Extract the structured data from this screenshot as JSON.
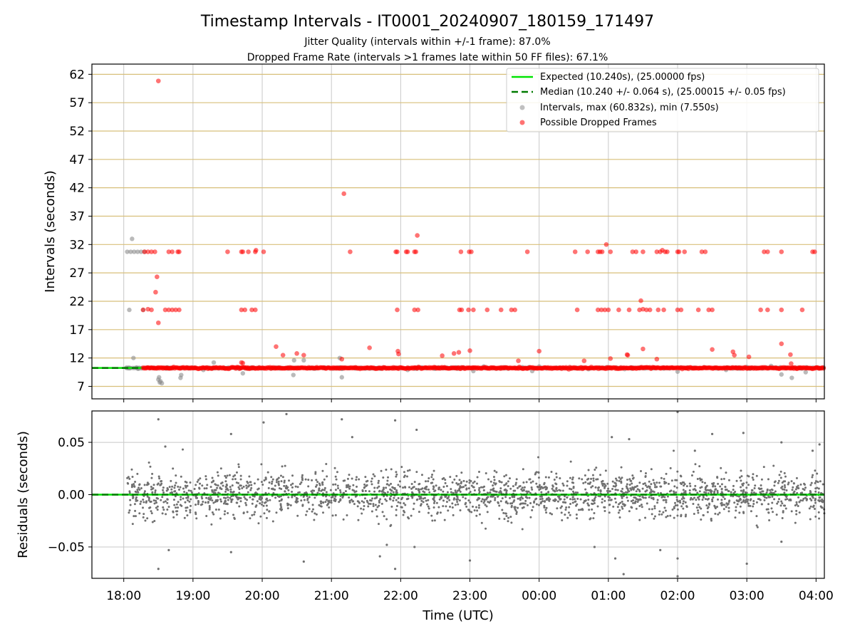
{
  "title": "Timestamp Intervals - IT0001_20240907_180159_171497",
  "subtitle_1": "Jitter Quality (intervals within +/-1 frame): 87.0%",
  "subtitle_2": "Dropped Frame Rate (intervals >1 frames late within 50 FF files): 67.1%",
  "colors": {
    "expected": "#00e400",
    "median": "#007a00",
    "interval": "#8c8c8c",
    "dropped": "#ff0000",
    "gridline": "#d8bf7a",
    "residual": "#707070"
  },
  "chart_data": [
    {
      "type": "scatter",
      "ylabel": "Intervals (seconds)",
      "y_ticks": [
        7,
        12,
        17,
        22,
        27,
        32,
        37,
        42,
        47,
        52,
        57,
        62
      ],
      "ylim": [
        4.8,
        63.8
      ],
      "xlim_hours": [
        17.54,
        28.12
      ],
      "grid": true,
      "legend_placement": "top-right",
      "legend": {
        "expected": "Expected (10.240s), (25.00000 fps)",
        "median": "Median (10.240 +/- 0.064 s), (25.00015 +/- 0.05 fps)",
        "intervals": "Intervals, max (60.832s), min (7.550s)",
        "dropped": "Possible Dropped Frames"
      },
      "expected_value": 10.24,
      "median_value": 10.24,
      "baseline_span_hours": [
        18.0,
        28.12
      ],
      "interval_points": [
        [
          18.05,
          30.72
        ],
        [
          18.1,
          30.72
        ],
        [
          18.15,
          30.72
        ],
        [
          18.2,
          30.72
        ],
        [
          18.25,
          30.72
        ],
        [
          18.3,
          30.72
        ],
        [
          18.12,
          33.0
        ],
        [
          18.08,
          20.48
        ],
        [
          18.28,
          20.48
        ],
        [
          18.14,
          12.0
        ],
        [
          18.5,
          8.2
        ],
        [
          18.52,
          7.7
        ],
        [
          18.55,
          7.55
        ],
        [
          18.51,
          8.6
        ],
        [
          18.53,
          7.9
        ],
        [
          18.82,
          8.5
        ],
        [
          18.83,
          9.0
        ],
        [
          19.15,
          9.9
        ],
        [
          19.3,
          11.2
        ],
        [
          19.72,
          9.3
        ],
        [
          20.45,
          9.0
        ],
        [
          20.46,
          11.6
        ],
        [
          20.6,
          11.6
        ],
        [
          21.15,
          8.6
        ],
        [
          21.12,
          12.0
        ],
        [
          22.1,
          9.9
        ],
        [
          23.05,
          9.7
        ],
        [
          23.2,
          10.5
        ],
        [
          23.9,
          9.7
        ],
        [
          24.0,
          10.5
        ],
        [
          26.0,
          9.6
        ],
        [
          26.7,
          9.9
        ],
        [
          27.0,
          10.4
        ],
        [
          27.35,
          10.6
        ],
        [
          27.5,
          9.1
        ],
        [
          27.65,
          8.5
        ],
        [
          27.85,
          9.5
        ]
      ],
      "dropped_points": [
        [
          18.5,
          60.832
        ],
        [
          18.3,
          30.72
        ],
        [
          18.35,
          30.72
        ],
        [
          18.4,
          30.72
        ],
        [
          18.45,
          30.72
        ],
        [
          18.65,
          30.72
        ],
        [
          18.7,
          30.72
        ],
        [
          18.8,
          30.72
        ],
        [
          18.78,
          30.72
        ],
        [
          19.5,
          30.72
        ],
        [
          19.7,
          30.72
        ],
        [
          19.72,
          30.72
        ],
        [
          19.8,
          30.72
        ],
        [
          19.9,
          30.72
        ],
        [
          19.91,
          31.0
        ],
        [
          20.02,
          30.72
        ],
        [
          21.27,
          30.72
        ],
        [
          21.93,
          30.72
        ],
        [
          21.95,
          30.72
        ],
        [
          22.08,
          30.72
        ],
        [
          22.1,
          30.72
        ],
        [
          22.2,
          30.72
        ],
        [
          22.22,
          30.72
        ],
        [
          22.87,
          30.72
        ],
        [
          22.99,
          30.72
        ],
        [
          23.02,
          30.72
        ],
        [
          23.83,
          30.72
        ],
        [
          24.52,
          30.72
        ],
        [
          24.7,
          30.72
        ],
        [
          24.85,
          30.72
        ],
        [
          24.88,
          30.72
        ],
        [
          24.91,
          30.72
        ],
        [
          25.03,
          30.72
        ],
        [
          25.35,
          30.72
        ],
        [
          25.4,
          30.72
        ],
        [
          25.5,
          30.72
        ],
        [
          25.7,
          30.72
        ],
        [
          25.75,
          30.72
        ],
        [
          25.78,
          31.0
        ],
        [
          25.82,
          30.72
        ],
        [
          25.85,
          30.72
        ],
        [
          26.0,
          30.72
        ],
        [
          26.02,
          30.72
        ],
        [
          26.1,
          30.72
        ],
        [
          26.35,
          30.72
        ],
        [
          26.4,
          30.72
        ],
        [
          27.25,
          30.72
        ],
        [
          27.3,
          30.72
        ],
        [
          27.5,
          30.72
        ],
        [
          27.95,
          30.72
        ],
        [
          27.98,
          30.72
        ],
        [
          24.97,
          32.0
        ],
        [
          22.24,
          33.6
        ],
        [
          18.48,
          26.3
        ],
        [
          18.46,
          23.6
        ],
        [
          18.5,
          18.2
        ],
        [
          18.28,
          20.48
        ],
        [
          18.35,
          20.6
        ],
        [
          18.4,
          20.48
        ],
        [
          18.6,
          20.48
        ],
        [
          18.65,
          20.48
        ],
        [
          18.7,
          20.48
        ],
        [
          18.75,
          20.48
        ],
        [
          18.8,
          20.48
        ],
        [
          19.7,
          20.48
        ],
        [
          19.75,
          20.48
        ],
        [
          19.85,
          20.48
        ],
        [
          19.9,
          20.48
        ],
        [
          21.95,
          20.48
        ],
        [
          22.2,
          20.48
        ],
        [
          22.25,
          20.48
        ],
        [
          22.85,
          20.48
        ],
        [
          22.88,
          20.48
        ],
        [
          22.98,
          20.48
        ],
        [
          23.05,
          20.48
        ],
        [
          23.25,
          20.48
        ],
        [
          23.45,
          20.48
        ],
        [
          23.6,
          20.48
        ],
        [
          23.65,
          20.48
        ],
        [
          24.55,
          20.48
        ],
        [
          24.85,
          20.48
        ],
        [
          24.9,
          20.48
        ],
        [
          24.95,
          20.48
        ],
        [
          25.0,
          20.48
        ],
        [
          25.15,
          20.48
        ],
        [
          25.3,
          20.48
        ],
        [
          25.45,
          20.48
        ],
        [
          25.5,
          20.6
        ],
        [
          25.55,
          20.48
        ],
        [
          25.6,
          20.48
        ],
        [
          25.72,
          20.48
        ],
        [
          25.8,
          20.48
        ],
        [
          26.0,
          20.48
        ],
        [
          26.05,
          20.48
        ],
        [
          26.3,
          20.48
        ],
        [
          26.45,
          20.48
        ],
        [
          26.5,
          20.48
        ],
        [
          27.2,
          20.48
        ],
        [
          27.3,
          20.48
        ],
        [
          27.5,
          20.48
        ],
        [
          27.8,
          20.48
        ],
        [
          25.47,
          22.1
        ],
        [
          21.18,
          40.96
        ],
        [
          20.2,
          14.0
        ],
        [
          20.5,
          12.8
        ],
        [
          20.3,
          12.5
        ],
        [
          20.6,
          12.5
        ],
        [
          21.55,
          13.8
        ],
        [
          21.96,
          13.2
        ],
        [
          21.97,
          12.7
        ],
        [
          22.6,
          12.4
        ],
        [
          22.77,
          12.8
        ],
        [
          22.84,
          13.0
        ],
        [
          23.0,
          13.3
        ],
        [
          24.0,
          13.2
        ],
        [
          25.27,
          12.6
        ],
        [
          25.28,
          12.5
        ],
        [
          25.5,
          13.6
        ],
        [
          26.5,
          13.5
        ],
        [
          26.8,
          13.1
        ],
        [
          26.82,
          12.5
        ],
        [
          27.03,
          12.2
        ],
        [
          27.5,
          14.5
        ],
        [
          27.63,
          12.6
        ],
        [
          27.64,
          11.0
        ],
        [
          25.03,
          11.9
        ],
        [
          25.7,
          11.8
        ],
        [
          24.65,
          11.5
        ],
        [
          23.7,
          11.5
        ],
        [
          19.7,
          11.2
        ],
        [
          19.72,
          11.1
        ],
        [
          21.15,
          11.8
        ]
      ],
      "dense_band": {
        "value": 10.24,
        "start_hours": 18.28,
        "end_hours": 28.12
      }
    },
    {
      "type": "scatter",
      "ylabel": "Residuals (seconds)",
      "xlabel": "Time (UTC)",
      "y_ticks": [
        -0.05,
        0.0,
        0.05
      ],
      "y_tick_labels": [
        "−0.05",
        "0.00",
        "0.05"
      ],
      "ylim": [
        -0.08,
        0.08
      ],
      "x_ticks_hours": [
        18,
        19,
        20,
        21,
        22,
        23,
        24,
        25,
        26,
        27,
        28
      ],
      "x_tick_labels": [
        "18:00",
        "19:00",
        "20:00",
        "21:00",
        "22:00",
        "23:00",
        "00:00",
        "01:00",
        "02:00",
        "03:00",
        "04:00"
      ],
      "grid": true,
      "zero_line": 0.0,
      "residual_spread_seconds": 0.02,
      "residual_span_hours": [
        18.05,
        28.12
      ],
      "outliers": [
        [
          18.5,
          0.072
        ],
        [
          18.5,
          -0.071
        ],
        [
          18.65,
          -0.053
        ],
        [
          18.6,
          0.046
        ],
        [
          19.55,
          0.058
        ],
        [
          19.55,
          -0.055
        ],
        [
          20.02,
          0.069
        ],
        [
          20.35,
          0.077
        ],
        [
          20.6,
          -0.064
        ],
        [
          21.15,
          0.072
        ],
        [
          21.3,
          0.055
        ],
        [
          21.7,
          -0.059
        ],
        [
          21.92,
          0.071
        ],
        [
          21.92,
          -0.071
        ],
        [
          22.23,
          0.062
        ],
        [
          22.2,
          -0.05
        ],
        [
          23.0,
          -0.063
        ],
        [
          24.8,
          -0.05
        ],
        [
          25.05,
          0.055
        ],
        [
          25.3,
          0.053
        ],
        [
          25.1,
          -0.061
        ],
        [
          25.75,
          -0.053
        ],
        [
          26.0,
          0.079
        ],
        [
          26.0,
          -0.078
        ],
        [
          26.0,
          -0.061
        ],
        [
          26.25,
          0.042
        ],
        [
          26.5,
          0.058
        ],
        [
          26.95,
          0.059
        ],
        [
          27.0,
          -0.066
        ],
        [
          27.5,
          0.05
        ],
        [
          27.5,
          -0.045
        ],
        [
          27.95,
          0.042
        ],
        [
          28.05,
          0.048
        ],
        [
          21.8,
          -0.048
        ],
        [
          25.22,
          -0.076
        ]
      ]
    }
  ]
}
